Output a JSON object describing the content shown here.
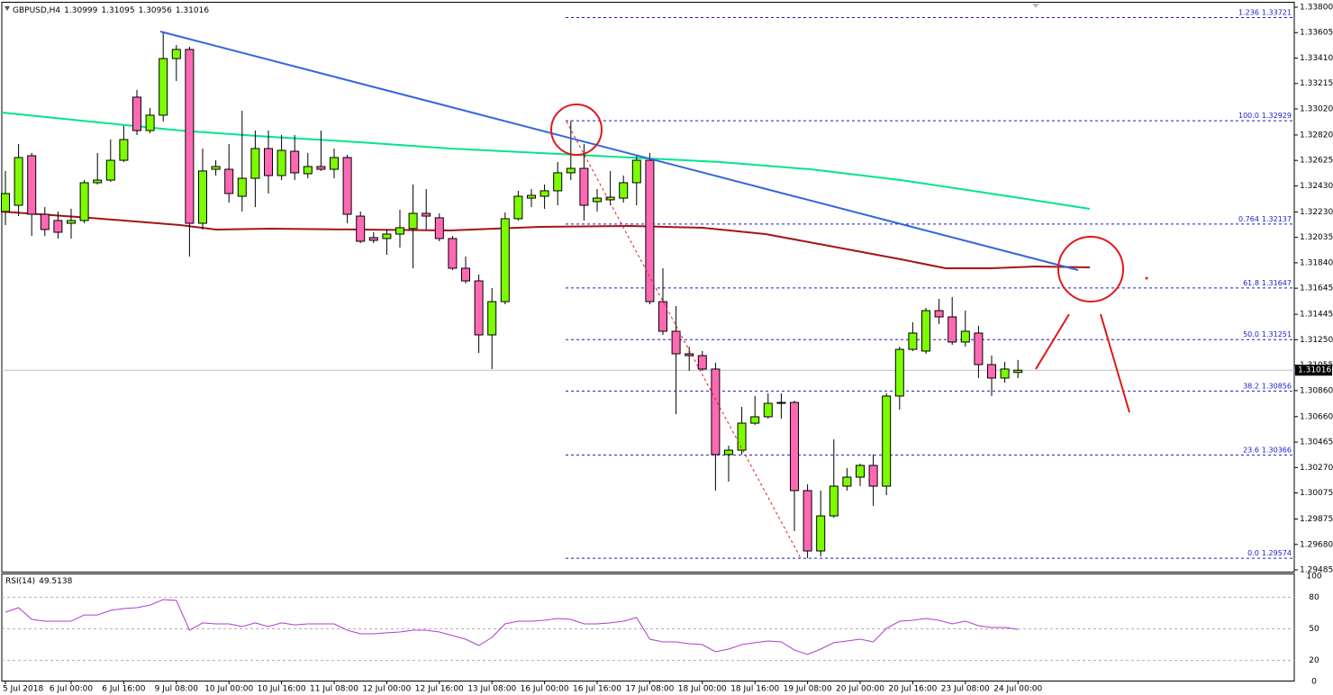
{
  "chart_data": [
    {
      "type": "candlestick",
      "title": "GBPUSD,H4",
      "categories": [
        "5 Jul 2018",
        null,
        null,
        null,
        null,
        "6 Jul 00:00",
        null,
        null,
        null,
        "6 Jul 16:00",
        null,
        null,
        null,
        "9 Jul 08:00",
        null,
        null,
        null,
        "10 Jul 00:00",
        null,
        null,
        null,
        "10 Jul 16:00",
        null,
        null,
        null,
        "11 Jul 08:00",
        null,
        null,
        null,
        "12 Jul 00:00",
        null,
        null,
        null,
        "12 Jul 16:00",
        null,
        null,
        null,
        "13 Jul 08:00",
        null,
        null,
        null,
        "16 Jul 00:00",
        null,
        null,
        null,
        "16 Jul 16:00",
        null,
        null,
        null,
        "17 Jul 08:00",
        null,
        null,
        null,
        "18 Jul 00:00",
        null,
        null,
        null,
        "18 Jul 16:00",
        null,
        null,
        null,
        "19 Jul 08:00",
        null,
        null,
        null,
        "20 Jul 00:00",
        null,
        null,
        null,
        "20 Jul 16:00",
        null,
        null,
        null,
        "23 Jul 08:00",
        null,
        null,
        null,
        "24 Jul 00:00"
      ],
      "open": [
        1.32233,
        1.32281,
        1.32661,
        1.32212,
        1.32164,
        1.32143,
        1.32164,
        1.32454,
        1.32474,
        1.32626,
        1.3311,
        1.32854,
        1.32972,
        1.33406,
        1.33476,
        1.32143,
        1.32557,
        1.32557,
        1.3235,
        1.32488,
        1.32716,
        1.32509,
        1.32695,
        1.32523,
        1.32578,
        1.32557,
        1.32647,
        1.32198,
        1.32033,
        1.32026,
        1.3206,
        1.32102,
        1.32219,
        1.32185,
        1.32026,
        1.31798,
        1.31701,
        1.31287,
        1.31542,
        1.32178,
        1.32336,
        1.3235,
        1.32392,
        1.3253,
        1.32564,
        1.32309,
        1.32323,
        1.32336,
        1.32454,
        1.32626,
        1.31542,
        1.31315,
        1.31142,
        1.31128,
        1.31025,
        1.30369,
        1.30403,
        1.3061,
        1.30659,
        1.30762,
        1.30769,
        1.30093,
        1.2963,
        1.29899,
        1.30127,
        1.30196,
        1.30286,
        1.30127,
        1.30818,
        1.31176,
        1.31163,
        1.31473,
        1.31425,
        1.31232,
        1.31301,
        1.31059,
        1.30956,
        1.30999
      ],
      "high": [
        1.32544,
        1.32751,
        1.32682,
        1.32267,
        1.32233,
        1.32254,
        1.32474,
        1.32682,
        1.32785,
        1.32889,
        1.33165,
        1.33027,
        1.33614,
        1.3351,
        1.33496,
        1.32716,
        1.32626,
        1.32751,
        1.33006,
        1.32854,
        1.32854,
        1.3282,
        1.3282,
        1.32682,
        1.32854,
        1.32716,
        1.32668,
        1.32233,
        1.32074,
        1.32095,
        1.32247,
        1.3244,
        1.32405,
        1.32219,
        1.32046,
        1.31888,
        1.3175,
        1.31646,
        1.32226,
        1.32392,
        1.32405,
        1.3244,
        1.32613,
        1.32929,
        1.32751,
        1.32405,
        1.32544,
        1.32509,
        1.32668,
        1.32682,
        1.31798,
        1.31508,
        1.31197,
        1.31163,
        1.31073,
        1.30438,
        1.30735,
        1.30818,
        1.30838,
        1.30838,
        1.30783,
        1.30141,
        1.30093,
        1.30486,
        1.30265,
        1.303,
        1.30369,
        1.30838,
        1.31197,
        1.31384,
        1.31494,
        1.31563,
        1.31577,
        1.31473,
        1.31356,
        1.31128,
        1.3108,
        1.31095
      ],
      "low": [
        1.32129,
        1.32198,
        1.32046,
        1.32046,
        1.32026,
        1.32026,
        1.32143,
        1.3244,
        1.32461,
        1.32613,
        1.3282,
        1.32833,
        1.32923,
        1.33234,
        1.31888,
        1.32095,
        1.32509,
        1.32302,
        1.32233,
        1.32267,
        1.32371,
        1.32474,
        1.32474,
        1.32488,
        1.32544,
        1.32488,
        1.32143,
        1.31991,
        1.31991,
        1.31901,
        1.31957,
        1.31798,
        1.32095,
        1.32005,
        1.31784,
        1.31681,
        1.31149,
        1.31025,
        1.31522,
        1.32164,
        1.32267,
        1.32254,
        1.32281,
        1.32474,
        1.32164,
        1.32233,
        1.32281,
        1.32302,
        1.32281,
        1.31522,
        1.31287,
        1.30679,
        1.31011,
        1.31011,
        1.30093,
        1.30162,
        1.30369,
        1.30597,
        1.30645,
        1.30645,
        1.29782,
        1.29574,
        1.29589,
        1.29885,
        1.30093,
        1.30127,
        1.29975,
        1.30058,
        1.30714,
        1.31163,
        1.31142,
        1.3137,
        1.31211,
        1.31197,
        1.30956,
        1.30818,
        1.30921,
        1.30956
      ],
      "close": [
        1.32371,
        1.32647,
        1.32212,
        1.32095,
        1.32074,
        1.32164,
        1.32454,
        1.32474,
        1.32626,
        1.32785,
        1.32854,
        1.32972,
        1.33406,
        1.33476,
        1.32143,
        1.32544,
        1.32578,
        1.32371,
        1.32488,
        1.32716,
        1.32509,
        1.32702,
        1.3253,
        1.32578,
        1.32557,
        1.32647,
        1.32212,
        1.32005,
        1.32012,
        1.3206,
        1.32109,
        1.32219,
        1.32198,
        1.32026,
        1.31798,
        1.31701,
        1.31287,
        1.31542,
        1.32178,
        1.3235,
        1.32357,
        1.32392,
        1.3253,
        1.32564,
        1.32281,
        1.32336,
        1.32343,
        1.32454,
        1.32626,
        1.31542,
        1.31315,
        1.31142,
        1.31128,
        1.31025,
        1.30369,
        1.30403,
        1.3061,
        1.30659,
        1.30762,
        1.30769,
        1.30093,
        1.2963,
        1.29899,
        1.30127,
        1.30196,
        1.30286,
        1.30127,
        1.30818,
        1.31176,
        1.31301,
        1.31473,
        1.31425,
        1.31232,
        1.31315,
        1.31059,
        1.30956,
        1.31025,
        1.31016
      ],
      "up_color": "#7cfc00",
      "down_color": "#ff69b4",
      "ylim": [
        1.29485,
        1.338
      ],
      "yticks": [
        {
          "value": 1.338,
          "label": "1.33800"
        },
        1.33605,
        {
          "value": 1.3341,
          "label": "1.33410"
        },
        1.33215,
        {
          "value": 1.3302,
          "label": "1.33020"
        },
        {
          "value": 1.3282,
          "label": "1.32820"
        },
        1.32625,
        {
          "value": 1.3243,
          "label": "1.32430"
        },
        {
          "value": 1.3223,
          "label": "1.32230"
        },
        1.32035,
        {
          "value": 1.3184,
          "label": "1.31840"
        },
        1.31645,
        1.31445,
        {
          "value": 1.3125,
          "label": "1.31250"
        },
        1.31055,
        {
          "value": 1.3086,
          "label": "1.30860"
        },
        {
          "value": 1.3066,
          "label": "1.30660"
        },
        1.30465,
        {
          "value": 1.3027,
          "label": "1.30270"
        },
        1.30075,
        1.29875,
        {
          "value": 1.2968,
          "label": "1.29680"
        },
        1.29485
      ],
      "fibonacci": [
        {
          "ratio": 1.236,
          "price": 1.33721
        },
        {
          "ratio": {
            "value": 100,
            "label": "100.0"
          },
          "price": 1.32929
        },
        {
          "ratio": 0.764,
          "price": 1.32137
        },
        {
          "ratio": 61.8,
          "price": 1.31647
        },
        {
          "ratio": {
            "value": 50,
            "label": "50.0"
          },
          "price": 1.31251
        },
        {
          "ratio": 38.2,
          "price": 1.30856
        },
        {
          "ratio": 23.6,
          "price": 1.30366
        },
        {
          "ratio": {
            "value": 0,
            "label": "0.0"
          },
          "price": 1.29574
        }
      ],
      "fib_color": "#1a1acd"
    },
    {
      "type": "line",
      "title": "RSI(14)",
      "color": "#b03cd0",
      "values": [
        65.8,
        70.1,
        59.0,
        57.3,
        57.3,
        57.3,
        63.2,
        63.2,
        67.5,
        69.2,
        70.1,
        72.6,
        77.8,
        76.9,
        48.7,
        55.6,
        54.7,
        54.7,
        52.1,
        55.6,
        52.1,
        55.6,
        53.8,
        54.7,
        54.7,
        54.7,
        48.7,
        45.3,
        45.3,
        46.2,
        47.0,
        48.7,
        48.7,
        47.0,
        43.6,
        40.2,
        34.2,
        41.9,
        54.7,
        57.3,
        57.3,
        58.1,
        59.8,
        59.0,
        54.7,
        54.7,
        55.6,
        57.3,
        60.7,
        40.2,
        37.6,
        37.6,
        35.9,
        35.0,
        28.2,
        30.8,
        35.0,
        36.8,
        38.5,
        37.6,
        29.9,
        25.6,
        30.8,
        36.8,
        38.5,
        40.2,
        37.6,
        50.4,
        57.3,
        58.1,
        59.8,
        58.1,
        54.7,
        57.3,
        53.0,
        51.3,
        51.3,
        49.5138
      ],
      "ylim": [
        0,
        100
      ],
      "yticks": [
        0,
        20,
        50,
        80,
        100
      ]
    }
  ]
}
